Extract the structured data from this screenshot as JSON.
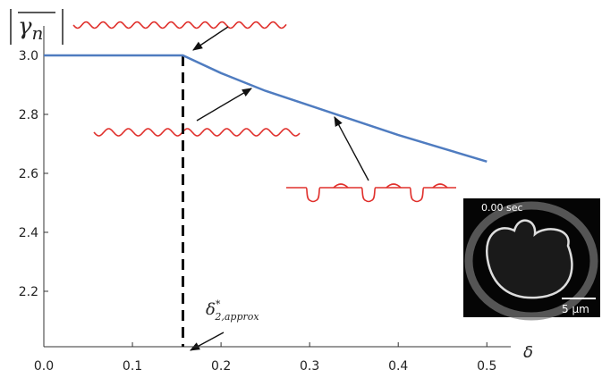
{
  "chart_data": {
    "type": "line",
    "x": [
      0,
      0.05,
      0.1,
      0.157,
      0.2,
      0.25,
      0.3,
      0.35,
      0.4,
      0.45,
      0.5
    ],
    "series": [
      {
        "color": "#4f7cc0",
        "values": [
          3.0,
          3.0,
          3.0,
          3.0,
          2.94,
          2.88,
          2.83,
          2.78,
          2.73,
          2.685,
          2.64
        ]
      }
    ],
    "xlim": [
      0,
      0.527
    ],
    "ylim": [
      2.012,
      3.1
    ],
    "xticks": [
      {
        "value": 0,
        "label": "0.0"
      },
      0.1,
      0.2,
      0.3,
      0.4,
      0.5
    ],
    "yticks": [
      {
        "value": 3,
        "label": "3.0"
      },
      2.8,
      2.6,
      2.4,
      2.2
    ],
    "x_label": "δ",
    "y_label": {
      "symbol": "γ",
      "subscript": "n"
    },
    "threshold": {
      "x": 0.157,
      "symbol": "δ",
      "superscript": "*",
      "subscript": "2,approx"
    },
    "inset": {
      "time_label": "0.00 sec",
      "scale_label": "5 μm"
    }
  }
}
